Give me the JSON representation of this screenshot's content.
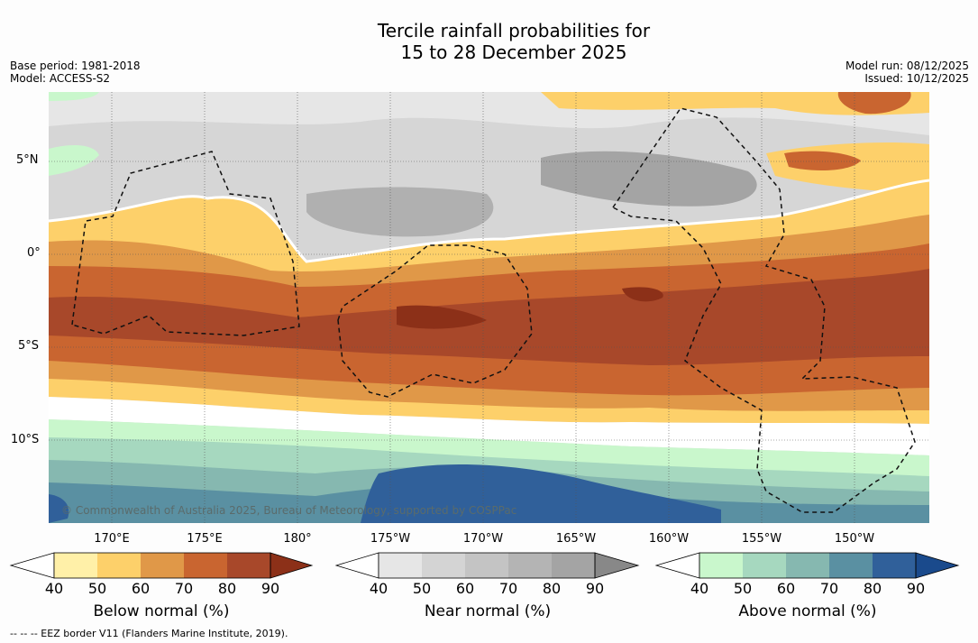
{
  "title_line1": "Tercile rainfall probabilities for",
  "title_line2": "15 to 28 December 2025",
  "base_period": "Base period: 1981-2018",
  "model": "Model: ACCESS-S2",
  "model_run": "Model run: 08/12/2025",
  "issued": "Issued: 10/12/2025",
  "credit": "© Commonwealth of Australia 2025, Bureau of Meteorology, supported by COSPPac",
  "lat_labels": [
    "5°N",
    "0°",
    "5°S",
    "10°S"
  ],
  "lon_labels": [
    "170°E",
    "175°E",
    "180°",
    "175°W",
    "170°W",
    "165°W",
    "160°W",
    "155°W",
    "150°W"
  ],
  "colorbars": [
    {
      "name": "Below normal (%)",
      "ticks": [
        "40",
        "50",
        "60",
        "70",
        "80",
        "90"
      ],
      "colors": [
        "#fff0a8",
        "#fdd06a",
        "#e09848",
        "#c96530",
        "#a8482a",
        "#8c3018"
      ]
    },
    {
      "name": "Near normal (%)",
      "ticks": [
        "40",
        "50",
        "60",
        "70",
        "80",
        "90"
      ],
      "colors": [
        "#e6e6e6",
        "#d4d4d4",
        "#c4c4c4",
        "#b4b4b4",
        "#a4a4a4",
        "#888888"
      ]
    },
    {
      "name": "Above normal (%)",
      "ticks": [
        "40",
        "50",
        "60",
        "70",
        "80",
        "90"
      ],
      "colors": [
        "#c9f7cc",
        "#a6d8bf",
        "#86b8b0",
        "#5a90a2",
        "#30609a",
        "#1a4a8c"
      ]
    }
  ],
  "eez_legend": "--  --  -- EEZ border V11 (Flanders Marine Institute, 2019)."
}
